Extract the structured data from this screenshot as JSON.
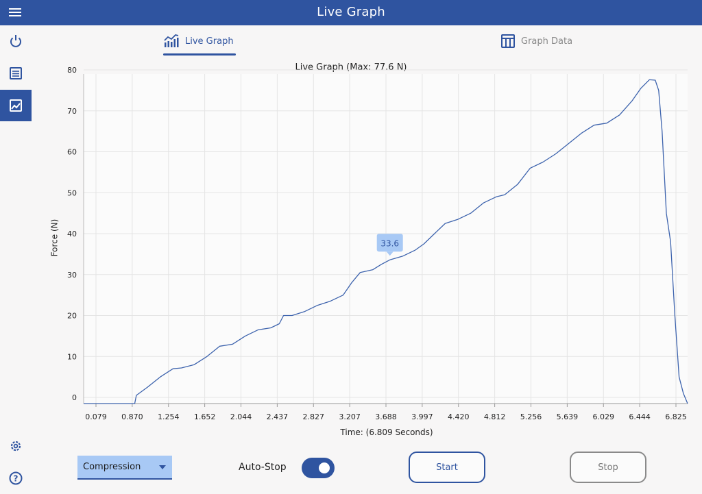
{
  "app": {
    "title": "Live Graph"
  },
  "tabs": [
    {
      "label": "Live Graph",
      "active": true
    },
    {
      "label": "Graph Data",
      "active": false
    }
  ],
  "sidebar": {
    "items": [
      "power",
      "list",
      "graph",
      "settings",
      "help"
    ]
  },
  "colors": {
    "accent": "#2f54a0",
    "selection": "#a8c9f5"
  },
  "chart_data": {
    "type": "line",
    "title": "Live Graph (Max: 77.6 N)",
    "xlabel": "Time: (6.809 Seconds)",
    "ylabel": "Force (N)",
    "ylim": [
      -1.5,
      79
    ],
    "yticks": [
      0,
      10,
      20,
      30,
      40,
      50,
      60,
      70,
      80
    ],
    "xticks": [
      "0.079",
      "0.870",
      "1.254",
      "1.652",
      "2.044",
      "2.437",
      "2.827",
      "3.207",
      "3.688",
      "3.997",
      "4.420",
      "4.812",
      "5.256",
      "5.639",
      "6.029",
      "6.444",
      "6.825"
    ],
    "series": [
      {
        "name": "Force",
        "points": [
          [
            0.0,
            -1.5
          ],
          [
            0.6,
            -1.5
          ],
          [
            0.62,
            0.5
          ],
          [
            0.75,
            2.5
          ],
          [
            0.9,
            5
          ],
          [
            1.05,
            7
          ],
          [
            1.15,
            7.2
          ],
          [
            1.3,
            8
          ],
          [
            1.45,
            10
          ],
          [
            1.6,
            12.5
          ],
          [
            1.75,
            13
          ],
          [
            1.9,
            15
          ],
          [
            2.05,
            16.5
          ],
          [
            2.2,
            17
          ],
          [
            2.3,
            18
          ],
          [
            2.35,
            20
          ],
          [
            2.45,
            20
          ],
          [
            2.6,
            21
          ],
          [
            2.75,
            22.5
          ],
          [
            2.9,
            23.5
          ],
          [
            3.05,
            25
          ],
          [
            3.15,
            28
          ],
          [
            3.25,
            30.5
          ],
          [
            3.4,
            31.2
          ],
          [
            3.5,
            32.5
          ],
          [
            3.6,
            33.6
          ],
          [
            3.75,
            34.5
          ],
          [
            3.9,
            36
          ],
          [
            4.0,
            37.5
          ],
          [
            4.1,
            39.5
          ],
          [
            4.25,
            42.5
          ],
          [
            4.4,
            43.5
          ],
          [
            4.55,
            45
          ],
          [
            4.7,
            47.5
          ],
          [
            4.85,
            49
          ],
          [
            4.95,
            49.5
          ],
          [
            5.1,
            52
          ],
          [
            5.25,
            56
          ],
          [
            5.4,
            57.5
          ],
          [
            5.55,
            59.5
          ],
          [
            5.7,
            62
          ],
          [
            5.85,
            64.5
          ],
          [
            6.0,
            66.5
          ],
          [
            6.15,
            67
          ],
          [
            6.3,
            69
          ],
          [
            6.45,
            72.5
          ],
          [
            6.55,
            75.5
          ],
          [
            6.65,
            77.6
          ],
          [
            6.72,
            77.5
          ],
          [
            6.76,
            75
          ],
          [
            6.8,
            65
          ],
          [
            6.85,
            45
          ],
          [
            6.9,
            38
          ],
          [
            6.95,
            20
          ],
          [
            7.0,
            5
          ],
          [
            7.05,
            1
          ],
          [
            7.1,
            -1.5
          ]
        ]
      }
    ],
    "annotations": [
      {
        "text": "33.6",
        "x": 3.6,
        "y": 33.6
      }
    ]
  },
  "controls": {
    "mode": "Compression",
    "auto_stop_label": "Auto-Stop",
    "auto_stop_on": true,
    "start_label": "Start",
    "stop_label": "Stop"
  }
}
